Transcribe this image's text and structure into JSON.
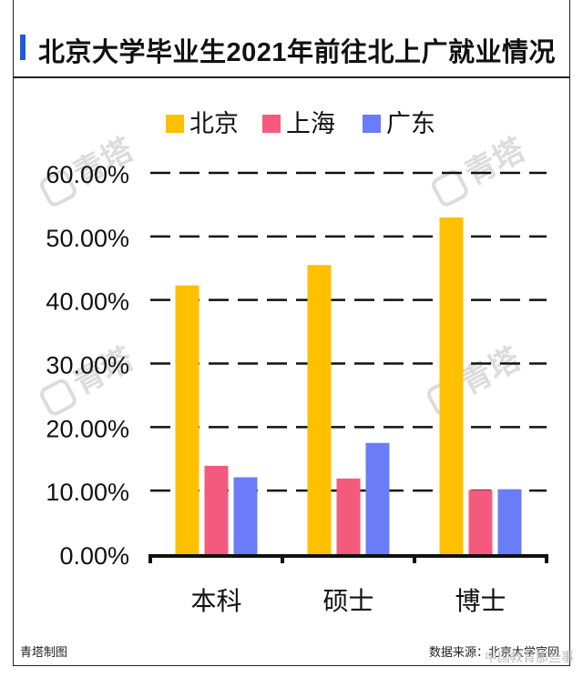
{
  "header": {
    "title": "北京大学毕业生2021年前往北上广就业情况"
  },
  "footer": {
    "left": "青塔制图",
    "right": "数据来源：北京大学官网",
    "overlay": "中国教育那些事"
  },
  "watermark": {
    "text": "青塔"
  },
  "colors": {
    "北京": "#ffc000",
    "上海": "#f45a7e",
    "广东": "#6a7cf7",
    "accent": "#1e5bd8"
  },
  "chart_data": {
    "type": "bar",
    "title": "北京大学毕业生2021年前往北上广就业情况",
    "categories": [
      "本科",
      "硕士",
      "博士"
    ],
    "series": [
      {
        "name": "北京",
        "color": "#ffc000",
        "values": [
          42.3,
          45.5,
          53.0
        ]
      },
      {
        "name": "上海",
        "color": "#f45a7e",
        "values": [
          13.9,
          11.9,
          10.1
        ]
      },
      {
        "name": "广东",
        "color": "#6a7cf7",
        "values": [
          12.1,
          17.5,
          10.2
        ]
      }
    ],
    "ylim": [
      0,
      60
    ],
    "yticks": [
      "0.00%",
      "10.00%",
      "20.00%",
      "30.00%",
      "40.00%",
      "50.00%",
      "60.00%"
    ],
    "ytick_values": [
      0,
      10,
      20,
      30,
      40,
      50,
      60
    ],
    "xlabel": "",
    "ylabel": "",
    "grid": true,
    "legend": "top-center"
  }
}
